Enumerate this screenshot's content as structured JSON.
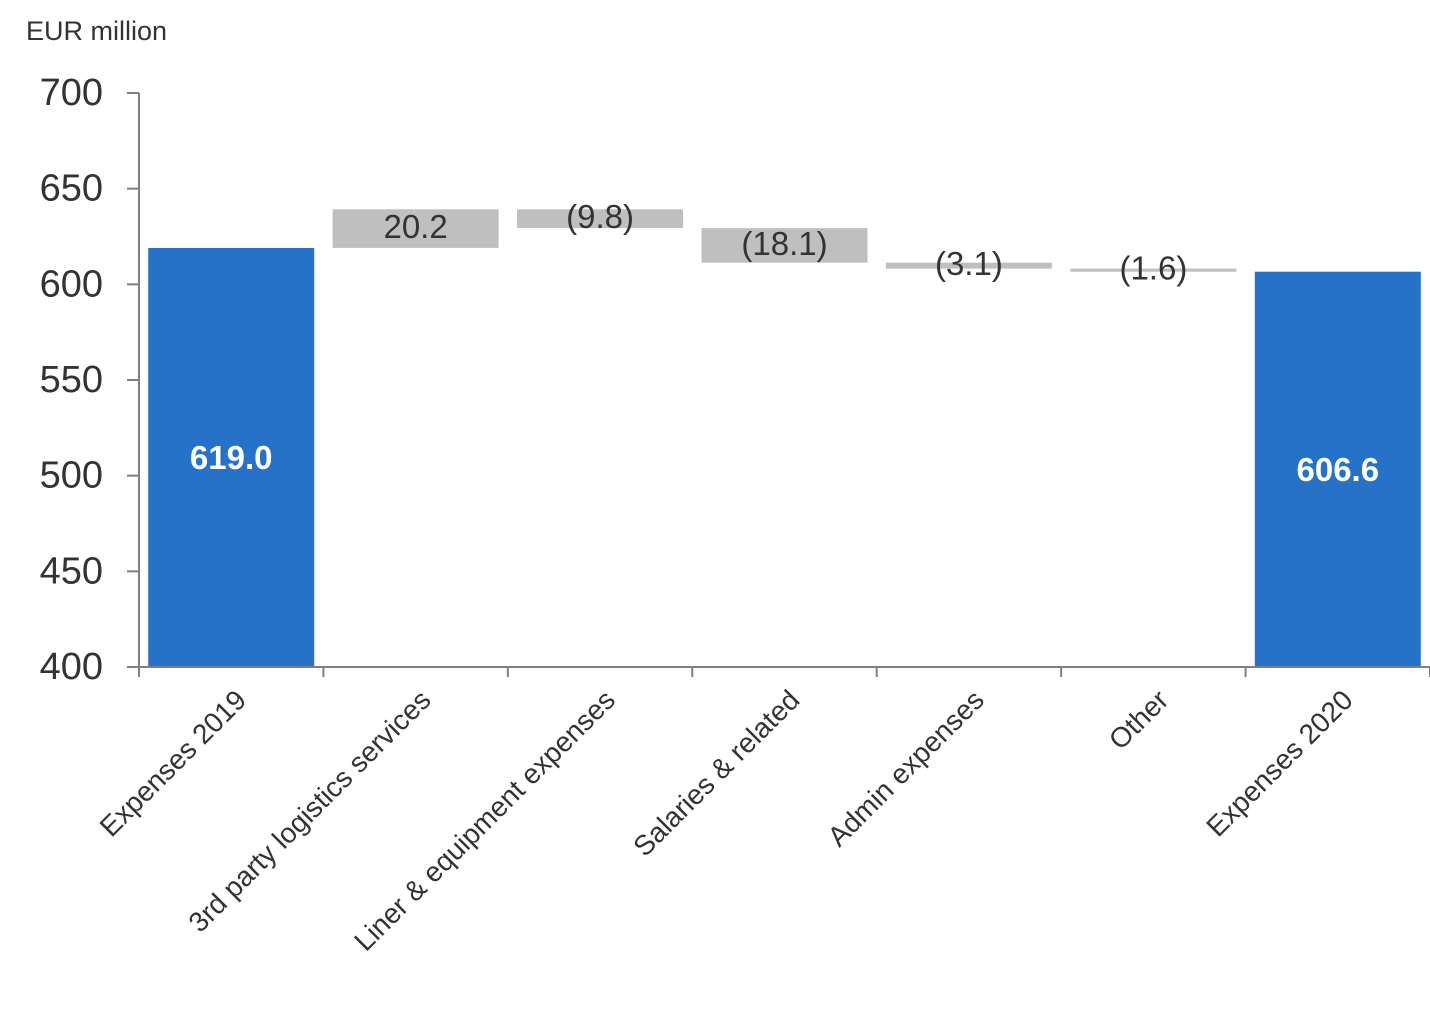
{
  "chart_data": {
    "type": "bar",
    "subtype": "waterfall",
    "unit_label": "EUR million",
    "categories": [
      "Expenses 2019",
      "3rd party logistics services",
      "Liner & equipment expenses",
      "Salaries & related",
      "Admin expenses",
      "Other",
      "Expenses 2020"
    ],
    "bars": [
      {
        "kind": "total",
        "start": 0,
        "end": 619.0,
        "label": "619.0"
      },
      {
        "kind": "delta",
        "start": 619.0,
        "end": 639.2,
        "label": "20.2"
      },
      {
        "kind": "delta",
        "start": 639.2,
        "end": 629.4,
        "label": "(9.8)"
      },
      {
        "kind": "delta",
        "start": 629.4,
        "end": 611.3,
        "label": "(18.1)"
      },
      {
        "kind": "delta",
        "start": 611.3,
        "end": 608.2,
        "label": "(3.1)"
      },
      {
        "kind": "delta",
        "start": 608.2,
        "end": 606.6,
        "label": "(1.6)"
      },
      {
        "kind": "total",
        "start": 0,
        "end": 606.6,
        "label": "606.6"
      }
    ],
    "ylim": [
      400,
      700
    ],
    "yticks": [
      "400",
      "450",
      "500",
      "550",
      "600",
      "650",
      "700"
    ],
    "grid": false,
    "legend": "none",
    "colors": {
      "total": "#2672c8",
      "delta": "#bfbfbf",
      "axis": "#7f7f7f",
      "text": "#333333"
    }
  }
}
